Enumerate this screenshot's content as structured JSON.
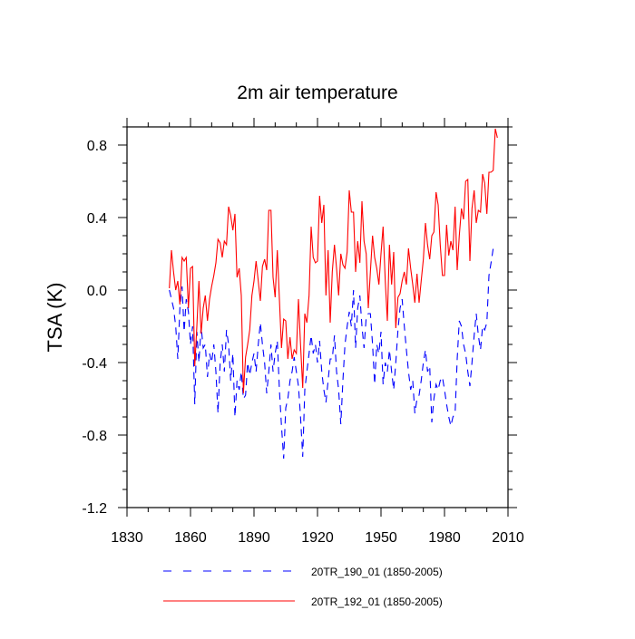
{
  "chart_data": {
    "type": "line",
    "title": "2m air temperature",
    "xlabel": "",
    "ylabel": "TSA  (K)",
    "xlim": [
      1830,
      2010
    ],
    "ylim": [
      -1.2,
      0.9
    ],
    "xticks": [
      1830,
      1860,
      1890,
      1920,
      1950,
      1980,
      2010
    ],
    "xtick_labels": [
      "1830",
      "1860",
      "1890",
      "1920",
      "1950",
      "1980",
      "2010"
    ],
    "yticks": [
      -1.2,
      -0.8,
      -0.4,
      0.0,
      0.4,
      0.8
    ],
    "ytick_labels": [
      "-1.2",
      "-0.8",
      "-0.4",
      "0.0",
      "0.4",
      "0.8"
    ],
    "grid": false,
    "legend_placement": "bottom",
    "series": [
      {
        "name": "20TR_190_01 (1850-2005)",
        "color": "#0000ff",
        "style": "dashed",
        "points": [
          [
            1850,
            0.0
          ],
          [
            1851,
            -0.05
          ],
          [
            1852,
            -0.1
          ],
          [
            1853,
            -0.2
          ],
          [
            1854,
            -0.38
          ],
          [
            1855,
            -0.1
          ],
          [
            1856,
            0.02
          ],
          [
            1857,
            -0.23
          ],
          [
            1858,
            -0.05
          ],
          [
            1859,
            -0.12
          ],
          [
            1860,
            -0.3
          ],
          [
            1861,
            -0.2
          ],
          [
            1862,
            -0.63
          ],
          [
            1863,
            -0.23
          ],
          [
            1864,
            -0.4
          ],
          [
            1865,
            -0.2
          ],
          [
            1866,
            -0.32
          ],
          [
            1867,
            -0.3
          ],
          [
            1868,
            -0.48
          ],
          [
            1869,
            -0.35
          ],
          [
            1870,
            -0.4
          ],
          [
            1871,
            -0.3
          ],
          [
            1872,
            -0.45
          ],
          [
            1873,
            -0.68
          ],
          [
            1874,
            -0.4
          ],
          [
            1875,
            -0.3
          ],
          [
            1876,
            -0.45
          ],
          [
            1877,
            -0.22
          ],
          [
            1878,
            -0.3
          ],
          [
            1879,
            -0.5
          ],
          [
            1880,
            -0.35
          ],
          [
            1881,
            -0.7
          ],
          [
            1882,
            -0.5
          ],
          [
            1883,
            -0.55
          ],
          [
            1884,
            -0.45
          ],
          [
            1885,
            -0.6
          ],
          [
            1886,
            -0.58
          ],
          [
            1887,
            -0.4
          ],
          [
            1888,
            -0.47
          ],
          [
            1889,
            -0.4
          ],
          [
            1890,
            -0.35
          ],
          [
            1891,
            -0.45
          ],
          [
            1892,
            -0.3
          ],
          [
            1893,
            -0.18
          ],
          [
            1894,
            -0.3
          ],
          [
            1895,
            -0.4
          ],
          [
            1896,
            -0.57
          ],
          [
            1897,
            -0.45
          ],
          [
            1898,
            -0.3
          ],
          [
            1899,
            -0.45
          ],
          [
            1900,
            -0.35
          ],
          [
            1901,
            -0.28
          ],
          [
            1902,
            -0.55
          ],
          [
            1903,
            -0.75
          ],
          [
            1904,
            -0.93
          ],
          [
            1905,
            -0.65
          ],
          [
            1906,
            -0.6
          ],
          [
            1907,
            -0.5
          ],
          [
            1908,
            -0.45
          ],
          [
            1909,
            -0.37
          ],
          [
            1910,
            -0.45
          ],
          [
            1911,
            -0.53
          ],
          [
            1912,
            -0.7
          ],
          [
            1913,
            -0.92
          ],
          [
            1914,
            -0.55
          ],
          [
            1915,
            -0.45
          ],
          [
            1916,
            -0.35
          ],
          [
            1917,
            -0.25
          ],
          [
            1918,
            -0.35
          ],
          [
            1919,
            -0.3
          ],
          [
            1920,
            -0.4
          ],
          [
            1921,
            -0.28
          ],
          [
            1922,
            -0.45
          ],
          [
            1923,
            -0.55
          ],
          [
            1924,
            -0.62
          ],
          [
            1925,
            -0.5
          ],
          [
            1926,
            -0.38
          ],
          [
            1927,
            -0.38
          ],
          [
            1928,
            -0.25
          ],
          [
            1929,
            -0.45
          ],
          [
            1930,
            -0.55
          ],
          [
            1931,
            -0.74
          ],
          [
            1932,
            -0.5
          ],
          [
            1933,
            -0.3
          ],
          [
            1934,
            -0.2
          ],
          [
            1935,
            -0.12
          ],
          [
            1936,
            -0.2
          ],
          [
            1937,
            0.0
          ],
          [
            1938,
            -0.32
          ],
          [
            1939,
            -0.1
          ],
          [
            1940,
            -0.03
          ],
          [
            1941,
            -0.2
          ],
          [
            1942,
            -0.32
          ],
          [
            1943,
            -0.15
          ],
          [
            1944,
            -0.13
          ],
          [
            1945,
            -0.13
          ],
          [
            1946,
            -0.3
          ],
          [
            1947,
            -0.52
          ],
          [
            1948,
            -0.3
          ],
          [
            1949,
            -0.35
          ],
          [
            1950,
            -0.23
          ],
          [
            1951,
            -0.52
          ],
          [
            1952,
            -0.4
          ],
          [
            1953,
            -0.45
          ],
          [
            1954,
            -0.33
          ],
          [
            1955,
            -0.45
          ],
          [
            1956,
            -0.55
          ],
          [
            1957,
            -0.4
          ],
          [
            1958,
            -0.22
          ],
          [
            1959,
            -0.1
          ],
          [
            1960,
            -0.05
          ],
          [
            1961,
            -0.2
          ],
          [
            1962,
            -0.33
          ],
          [
            1963,
            -0.45
          ],
          [
            1964,
            -0.55
          ],
          [
            1965,
            -0.5
          ],
          [
            1966,
            -0.68
          ],
          [
            1967,
            -0.6
          ],
          [
            1968,
            -0.58
          ],
          [
            1969,
            -0.5
          ],
          [
            1970,
            -0.4
          ],
          [
            1971,
            -0.33
          ],
          [
            1972,
            -0.45
          ],
          [
            1973,
            -0.42
          ],
          [
            1974,
            -0.73
          ],
          [
            1975,
            -0.6
          ],
          [
            1976,
            -0.52
          ],
          [
            1977,
            -0.55
          ],
          [
            1978,
            -0.5
          ],
          [
            1979,
            -0.48
          ],
          [
            1980,
            -0.55
          ],
          [
            1981,
            -0.63
          ],
          [
            1982,
            -0.7
          ],
          [
            1983,
            -0.75
          ],
          [
            1984,
            -0.7
          ],
          [
            1985,
            -0.68
          ],
          [
            1986,
            -0.38
          ],
          [
            1987,
            -0.17
          ],
          [
            1988,
            -0.2
          ],
          [
            1989,
            -0.3
          ],
          [
            1990,
            -0.35
          ],
          [
            1991,
            -0.45
          ],
          [
            1992,
            -0.53
          ],
          [
            1993,
            -0.4
          ],
          [
            1994,
            -0.25
          ],
          [
            1995,
            -0.13
          ],
          [
            1996,
            -0.25
          ],
          [
            1997,
            -0.33
          ],
          [
            1998,
            -0.2
          ],
          [
            1999,
            -0.22
          ],
          [
            2000,
            -0.18
          ],
          [
            2001,
            0.08
          ],
          [
            2002,
            0.15
          ],
          [
            2003,
            0.23
          ],
          [
            2004,
            0.24
          ]
        ]
      },
      {
        "name": "20TR_192_01 (1850-2005)",
        "color": "#ff0000",
        "style": "solid",
        "points": [
          [
            1850,
            0.01
          ],
          [
            1851,
            0.22
          ],
          [
            1852,
            0.1
          ],
          [
            1853,
            0.0
          ],
          [
            1854,
            0.05
          ],
          [
            1855,
            -0.08
          ],
          [
            1856,
            0.18
          ],
          [
            1857,
            0.16
          ],
          [
            1858,
            0.18
          ],
          [
            1859,
            -0.1
          ],
          [
            1860,
            0.12
          ],
          [
            1861,
            0.13
          ],
          [
            1862,
            -0.42
          ],
          [
            1863,
            -0.2
          ],
          [
            1864,
            0.05
          ],
          [
            1865,
            -0.24
          ],
          [
            1866,
            -0.1
          ],
          [
            1867,
            -0.03
          ],
          [
            1868,
            -0.17
          ],
          [
            1869,
            -0.05
          ],
          [
            1870,
            0.02
          ],
          [
            1871,
            0.08
          ],
          [
            1872,
            0.15
          ],
          [
            1873,
            0.28
          ],
          [
            1874,
            0.26
          ],
          [
            1875,
            0.18
          ],
          [
            1876,
            0.27
          ],
          [
            1877,
            0.25
          ],
          [
            1878,
            0.46
          ],
          [
            1879,
            0.41
          ],
          [
            1880,
            0.33
          ],
          [
            1881,
            0.42
          ],
          [
            1882,
            0.07
          ],
          [
            1883,
            0.12
          ],
          [
            1884,
            -0.03
          ],
          [
            1885,
            -0.57
          ],
          [
            1886,
            -0.37
          ],
          [
            1887,
            -0.3
          ],
          [
            1888,
            -0.22
          ],
          [
            1889,
            -0.03
          ],
          [
            1890,
            0.05
          ],
          [
            1891,
            0.16
          ],
          [
            1892,
            0.05
          ],
          [
            1893,
            -0.06
          ],
          [
            1894,
            0.13
          ],
          [
            1895,
            0.17
          ],
          [
            1896,
            0.11
          ],
          [
            1897,
            0.44
          ],
          [
            1898,
            0.44
          ],
          [
            1899,
            0.07
          ],
          [
            1900,
            -0.04
          ],
          [
            1901,
            0.22
          ],
          [
            1902,
            -0.05
          ],
          [
            1903,
            -0.32
          ],
          [
            1904,
            -0.16
          ],
          [
            1905,
            -0.17
          ],
          [
            1906,
            -0.38
          ],
          [
            1907,
            -0.26
          ],
          [
            1908,
            -0.38
          ],
          [
            1909,
            -0.33
          ],
          [
            1910,
            -0.35
          ],
          [
            1911,
            -0.05
          ],
          [
            1912,
            -0.3
          ],
          [
            1913,
            -0.54
          ],
          [
            1914,
            -0.13
          ],
          [
            1915,
            -0.18
          ],
          [
            1916,
            -0.03
          ],
          [
            1917,
            0.35
          ],
          [
            1918,
            0.18
          ],
          [
            1919,
            0.15
          ],
          [
            1920,
            0.16
          ],
          [
            1921,
            0.52
          ],
          [
            1922,
            0.37
          ],
          [
            1923,
            0.47
          ],
          [
            1924,
            -0.03
          ],
          [
            1925,
            0.22
          ],
          [
            1926,
            -0.18
          ],
          [
            1927,
            0.1
          ],
          [
            1928,
            0.25
          ],
          [
            1929,
            0.12
          ],
          [
            1930,
            -0.03
          ],
          [
            1931,
            0.2
          ],
          [
            1932,
            0.14
          ],
          [
            1933,
            0.12
          ],
          [
            1934,
            0.21
          ],
          [
            1935,
            0.55
          ],
          [
            1936,
            0.43
          ],
          [
            1937,
            0.43
          ],
          [
            1938,
            0.1
          ],
          [
            1939,
            0.27
          ],
          [
            1940,
            0.15
          ],
          [
            1941,
            0.49
          ],
          [
            1942,
            0.27
          ],
          [
            1943,
            0.2
          ],
          [
            1944,
            -0.1
          ],
          [
            1945,
            0.1
          ],
          [
            1946,
            0.3
          ],
          [
            1947,
            0.18
          ],
          [
            1948,
            0.12
          ],
          [
            1949,
            0.03
          ],
          [
            1950,
            0.2
          ],
          [
            1951,
            0.35
          ],
          [
            1952,
            0.05
          ],
          [
            1953,
            -0.17
          ],
          [
            1954,
            0.25
          ],
          [
            1955,
            0.03
          ],
          [
            1956,
            0.21
          ],
          [
            1957,
            -0.21
          ],
          [
            1958,
            -0.04
          ],
          [
            1959,
            -0.02
          ],
          [
            1960,
            0.05
          ],
          [
            1961,
            0.1
          ],
          [
            1962,
            0.03
          ],
          [
            1963,
            0.23
          ],
          [
            1964,
            0.12
          ],
          [
            1965,
            0.03
          ],
          [
            1966,
            -0.07
          ],
          [
            1967,
            0.09
          ],
          [
            1968,
            -0.07
          ],
          [
            1969,
            0.05
          ],
          [
            1970,
            0.17
          ],
          [
            1971,
            0.37
          ],
          [
            1972,
            0.25
          ],
          [
            1973,
            0.17
          ],
          [
            1974,
            0.3
          ],
          [
            1975,
            0.32
          ],
          [
            1976,
            0.54
          ],
          [
            1977,
            0.47
          ],
          [
            1978,
            0.25
          ],
          [
            1979,
            0.08
          ],
          [
            1980,
            0.08
          ],
          [
            1981,
            0.36
          ],
          [
            1982,
            0.19
          ],
          [
            1983,
            0.27
          ],
          [
            1984,
            0.22
          ],
          [
            1985,
            0.46
          ],
          [
            1986,
            0.11
          ],
          [
            1987,
            0.3
          ],
          [
            1988,
            0.45
          ],
          [
            1989,
            0.39
          ],
          [
            1990,
            0.6
          ],
          [
            1991,
            0.61
          ],
          [
            1992,
            0.16
          ],
          [
            1993,
            0.45
          ],
          [
            1994,
            0.55
          ],
          [
            1995,
            0.37
          ],
          [
            1996,
            0.44
          ],
          [
            1997,
            0.43
          ],
          [
            1998,
            0.64
          ],
          [
            1999,
            0.59
          ],
          [
            2000,
            0.42
          ],
          [
            2001,
            0.65
          ],
          [
            2002,
            0.65
          ],
          [
            2003,
            0.66
          ],
          [
            2004,
            0.89
          ],
          [
            2005,
            0.84
          ]
        ]
      }
    ]
  }
}
